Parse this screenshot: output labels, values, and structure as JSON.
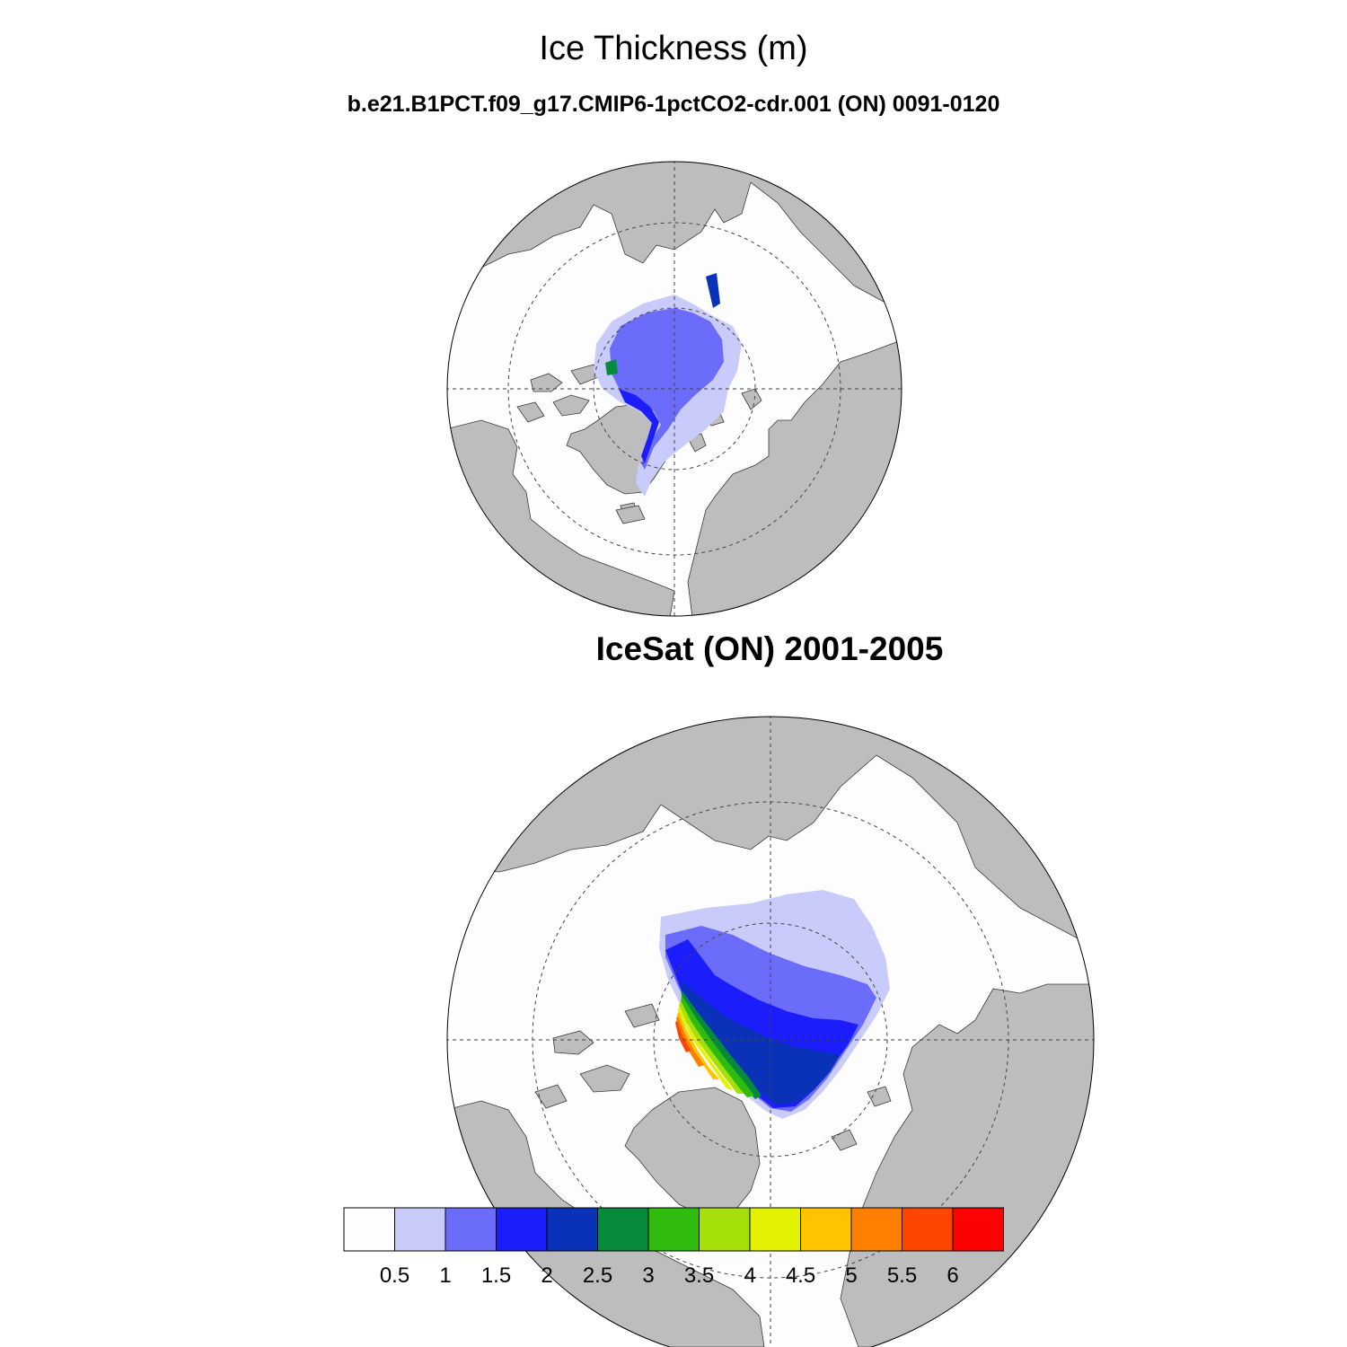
{
  "header": {
    "title": "Ice Thickness (m)",
    "subtitle": "b.e21.B1PCT.f09_g17.CMIP6-1pctCO2-cdr.001 (ON) 0091-0120"
  },
  "panels": [
    {
      "name": "model",
      "title": ""
    },
    {
      "name": "observation",
      "title": "IceSat (ON) 2001-2005"
    }
  ],
  "colorbar": {
    "labels": [
      "0.5",
      "1",
      "1.5",
      "2",
      "2.5",
      "3",
      "3.5",
      "4",
      "4.5",
      "5",
      "5.5",
      "6"
    ],
    "colors": [
      "#fdfdfd",
      "#c9cbfb",
      "#6b6cf9",
      "#1c1dfb",
      "#0a32b9",
      "#088a3c",
      "#2fbc0e",
      "#a6e00b",
      "#e3f203",
      "#fec400",
      "#ff7f00",
      "#ff4600",
      "#fe0101"
    ]
  },
  "map_style": {
    "land": "#bdbdbd",
    "ocean": "#fdfdfd",
    "coast": "#3a3a3a"
  }
}
